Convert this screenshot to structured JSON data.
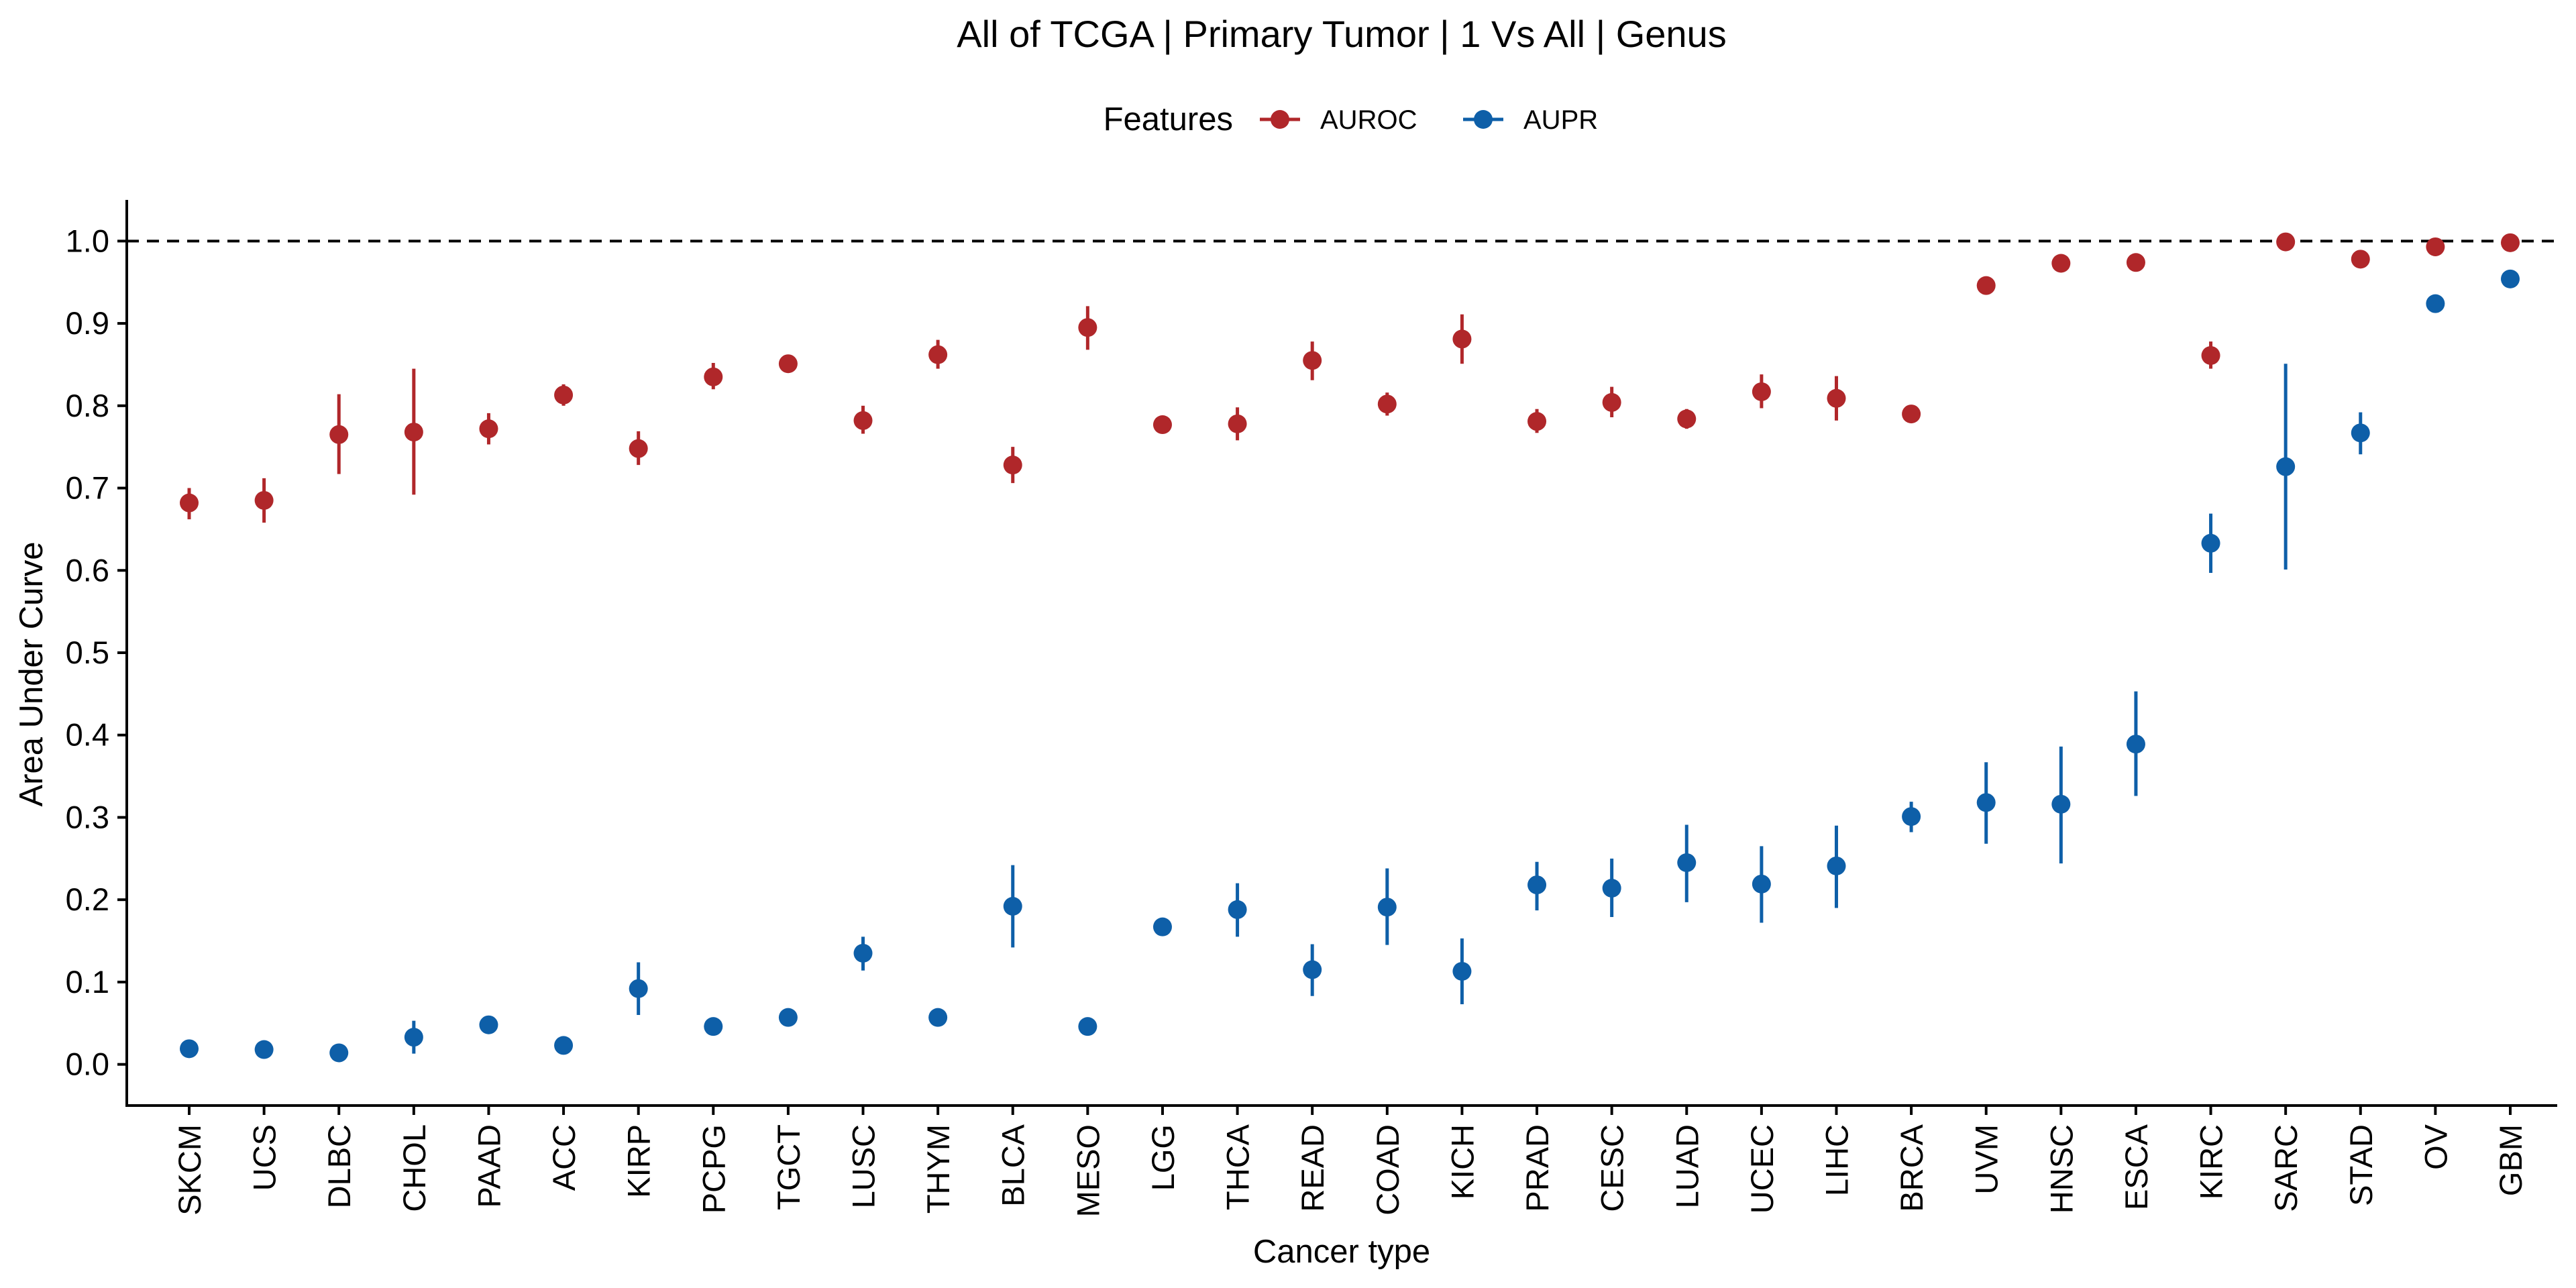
{
  "chart_data": {
    "type": "scatter",
    "title": "All of TCGA | Primary Tumor | 1 Vs All | Genus",
    "xlabel": "Cancer type",
    "ylabel": "Area Under Curve",
    "ylim": [
      -0.05,
      1.05
    ],
    "yticks": [
      0.0,
      0.1,
      0.2,
      0.3,
      0.4,
      0.5,
      0.6,
      0.7,
      0.8,
      0.9,
      1.0
    ],
    "ytick_labels": [
      "0.0",
      "0.1",
      "0.2",
      "0.3",
      "0.4",
      "0.5",
      "0.6",
      "0.7",
      "0.8",
      "0.9",
      "1.0"
    ],
    "reference_line": {
      "y": 1.0,
      "style": "dashed"
    },
    "grid": false,
    "legend": {
      "title": "Features",
      "placement": "top-center",
      "entries": [
        "AUROC",
        "AUPR"
      ]
    },
    "categories": [
      "SKCM",
      "UCS",
      "DLBC",
      "CHOL",
      "PAAD",
      "ACC",
      "KIRP",
      "PCPG",
      "TGCT",
      "LUSC",
      "THYM",
      "BLCA",
      "MESO",
      "LGG",
      "THCA",
      "READ",
      "COAD",
      "KICH",
      "PRAD",
      "CESC",
      "LUAD",
      "UCEC",
      "LIHC",
      "BRCA",
      "UVM",
      "HNSC",
      "ESCA",
      "KIRC",
      "SARC",
      "STAD",
      "OV",
      "GBM"
    ],
    "series": [
      {
        "name": "AUROC",
        "color": "#B0272A",
        "values": [
          0.682,
          0.685,
          0.765,
          0.768,
          0.772,
          0.813,
          0.748,
          0.835,
          0.851,
          0.782,
          0.862,
          0.728,
          0.895,
          0.777,
          0.778,
          0.855,
          0.802,
          0.881,
          0.781,
          0.804,
          0.784,
          0.817,
          0.809,
          0.79,
          0.946,
          0.973,
          0.974,
          0.861,
          0.999,
          0.978,
          0.993,
          0.998
        ],
        "lower": [
          0.662,
          0.658,
          0.717,
          0.692,
          0.753,
          0.8,
          0.728,
          0.82,
          0.843,
          0.766,
          0.845,
          0.706,
          0.868,
          0.77,
          0.758,
          0.831,
          0.788,
          0.851,
          0.767,
          0.786,
          0.772,
          0.797,
          0.782,
          0.782,
          0.94,
          0.966,
          0.968,
          0.845,
          0.993,
          0.971,
          0.986,
          0.993
        ],
        "upper": [
          0.7,
          0.712,
          0.814,
          0.845,
          0.791,
          0.826,
          0.769,
          0.852,
          0.859,
          0.8,
          0.88,
          0.75,
          0.921,
          0.784,
          0.798,
          0.878,
          0.816,
          0.911,
          0.796,
          0.823,
          0.796,
          0.838,
          0.836,
          0.798,
          0.952,
          0.98,
          0.98,
          0.878,
          1.0,
          0.985,
          1.0,
          1.0
        ]
      },
      {
        "name": "AUPR",
        "color": "#0E5FA8",
        "values": [
          0.019,
          0.018,
          0.014,
          0.033,
          0.048,
          0.023,
          0.092,
          0.046,
          0.057,
          0.135,
          0.057,
          0.192,
          0.046,
          0.167,
          0.188,
          0.115,
          0.191,
          0.113,
          0.218,
          0.214,
          0.245,
          0.219,
          0.241,
          0.301,
          0.318,
          0.316,
          0.389,
          0.633,
          0.726,
          0.767,
          0.924,
          0.954
        ],
        "lower": [
          0.014,
          0.013,
          0.009,
          0.013,
          0.043,
          0.019,
          0.06,
          0.041,
          0.052,
          0.114,
          0.052,
          0.142,
          0.041,
          0.161,
          0.155,
          0.083,
          0.145,
          0.073,
          0.187,
          0.179,
          0.197,
          0.172,
          0.19,
          0.282,
          0.268,
          0.244,
          0.326,
          0.597,
          0.601,
          0.741,
          0.917,
          0.946
        ],
        "upper": [
          0.024,
          0.023,
          0.019,
          0.053,
          0.053,
          0.027,
          0.124,
          0.051,
          0.062,
          0.155,
          0.062,
          0.242,
          0.051,
          0.173,
          0.22,
          0.146,
          0.238,
          0.153,
          0.246,
          0.25,
          0.291,
          0.265,
          0.29,
          0.319,
          0.367,
          0.386,
          0.453,
          0.669,
          0.851,
          0.792,
          0.931,
          0.962
        ]
      }
    ]
  }
}
